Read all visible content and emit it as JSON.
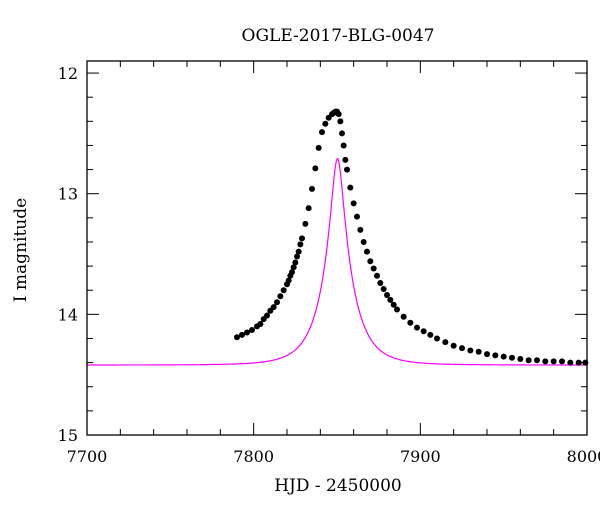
{
  "chart_data": {
    "type": "scatter",
    "title": "OGLE-2017-BLG-0047",
    "xlabel": "HJD - 2450000",
    "ylabel": "I magnitude",
    "xlim": [
      7700,
      8000
    ],
    "ylim": [
      15.0,
      11.9
    ],
    "y_inverted": true,
    "grid": false,
    "x_ticks": [
      7700,
      7800,
      7900,
      8000
    ],
    "y_ticks": [
      12,
      13,
      14,
      15
    ],
    "x_tick_labels": [
      "7700",
      "7800",
      "7900",
      "8000"
    ],
    "y_tick_labels": [
      "12",
      "13",
      "14",
      "15"
    ],
    "colors": {
      "model": "#ff00ff",
      "data": "#000000"
    },
    "model": {
      "t0": 7850.3,
      "tE": 16.5,
      "u0": 0.21,
      "I_base": 14.42
    },
    "series": [
      {
        "points": [
          [
            7790,
            14.19
          ],
          [
            7793,
            14.17
          ],
          [
            7796,
            14.15
          ],
          [
            7799,
            14.13
          ],
          [
            7802,
            14.1
          ],
          [
            7804,
            14.08
          ],
          [
            7806,
            14.04
          ],
          [
            7808,
            14.01
          ],
          [
            7810,
            13.97
          ],
          [
            7812,
            13.94
          ],
          [
            7814,
            13.9
          ],
          [
            7816,
            13.85
          ],
          [
            7818,
            13.8
          ],
          [
            7820,
            13.75
          ],
          [
            7821,
            13.72
          ],
          [
            7822,
            13.68
          ],
          [
            7823,
            13.65
          ],
          [
            7824,
            13.61
          ],
          [
            7825,
            13.57
          ],
          [
            7826,
            13.52
          ],
          [
            7827,
            13.48
          ],
          [
            7828,
            13.42
          ],
          [
            7829,
            13.37
          ],
          [
            7831,
            13.25
          ],
          [
            7833,
            13.12
          ],
          [
            7835,
            12.96
          ],
          [
            7837,
            12.79
          ],
          [
            7839,
            12.62
          ],
          [
            7841,
            12.49
          ],
          [
            7843,
            12.42
          ],
          [
            7845,
            12.37
          ],
          [
            7847,
            12.34
          ],
          [
            7848,
            12.33
          ],
          [
            7849,
            12.32
          ],
          [
            7850,
            12.32
          ],
          [
            7851,
            12.34
          ],
          [
            7852,
            12.4
          ],
          [
            7853,
            12.5
          ],
          [
            7854,
            12.6
          ],
          [
            7855,
            12.72
          ],
          [
            7856,
            12.8
          ],
          [
            7858,
            12.95
          ],
          [
            7860,
            13.08
          ],
          [
            7862,
            13.19
          ],
          [
            7864,
            13.3
          ],
          [
            7866,
            13.4
          ],
          [
            7868,
            13.48
          ],
          [
            7870,
            13.56
          ],
          [
            7872,
            13.62
          ],
          [
            7874,
            13.68
          ],
          [
            7876,
            13.74
          ],
          [
            7878,
            13.79
          ],
          [
            7880,
            13.84
          ],
          [
            7882,
            13.88
          ],
          [
            7884,
            13.92
          ],
          [
            7886,
            13.96
          ],
          [
            7890,
            14.02
          ],
          [
            7894,
            14.07
          ],
          [
            7898,
            14.11
          ],
          [
            7902,
            14.14
          ],
          [
            7906,
            14.17
          ],
          [
            7910,
            14.2
          ],
          [
            7915,
            14.23
          ],
          [
            7920,
            14.26
          ],
          [
            7925,
            14.28
          ],
          [
            7930,
            14.3
          ],
          [
            7935,
            14.31
          ],
          [
            7940,
            14.33
          ],
          [
            7945,
            14.34
          ],
          [
            7950,
            14.35
          ],
          [
            7955,
            14.36
          ],
          [
            7960,
            14.37
          ],
          [
            7965,
            14.38
          ],
          [
            7970,
            14.38
          ],
          [
            7975,
            14.39
          ],
          [
            7980,
            14.39
          ],
          [
            7985,
            14.39
          ],
          [
            7990,
            14.4
          ],
          [
            7995,
            14.4
          ],
          [
            7999,
            14.4
          ]
        ]
      }
    ]
  }
}
